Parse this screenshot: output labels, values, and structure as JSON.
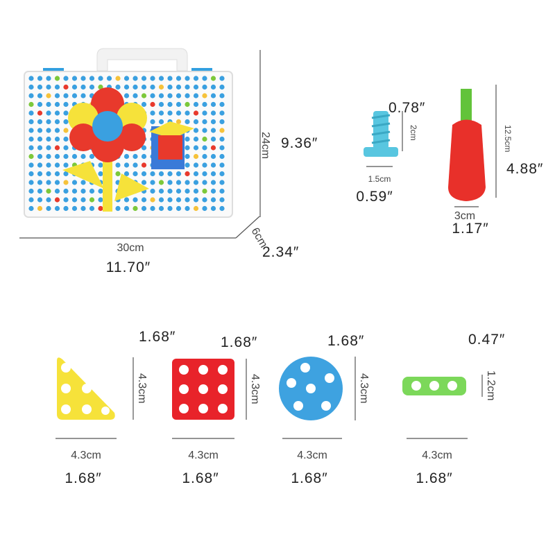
{
  "case": {
    "width_cm": "30cm",
    "width_in": "11.70″",
    "height_cm": "24cm",
    "height_in": "9.36″",
    "depth_cm": "6cm",
    "depth_in": "2.34″"
  },
  "screw": {
    "height_cm": "2cm",
    "height_in": "0.78″",
    "width_cm": "1.5cm",
    "width_in": "0.59″"
  },
  "screwdriver": {
    "height_cm": "12.5cm",
    "height_in": "4.88″",
    "width_cm": "3cm",
    "width_in": "1.17″"
  },
  "pieces": [
    {
      "height_cm": "4.3cm",
      "height_in": "1.68″",
      "width_cm": "4.3cm",
      "width_in": "1.68″"
    },
    {
      "height_cm": "4.3cm",
      "height_in": "1.68″",
      "width_cm": "4.3cm",
      "width_in": "1.68″"
    },
    {
      "height_cm": "4.3cm",
      "height_in": "1.68″",
      "width_cm": "4.3cm",
      "width_in": "1.68″"
    },
    {
      "height_cm": "1.2cm",
      "height_in": "0.47″",
      "width_cm": "4.3cm",
      "width_in": "1.68″"
    }
  ]
}
